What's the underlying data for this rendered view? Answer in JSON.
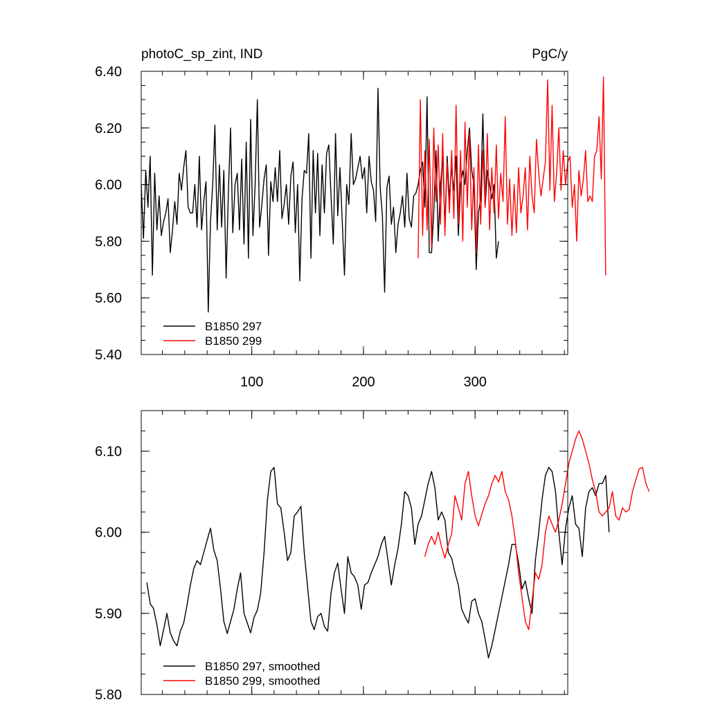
{
  "chart_data": [
    {
      "type": "line",
      "title_left": "photoC_sp_zint, IND",
      "title_right": "PgC/y",
      "xlim": [
        1,
        383
      ],
      "ylim": [
        5.4,
        6.4
      ],
      "x_ticks": [
        100,
        200,
        300
      ],
      "x_tick_labels": [
        "100",
        "200",
        "300"
      ],
      "y_ticks": [
        5.4,
        5.6,
        5.8,
        6.0,
        6.2,
        6.4
      ],
      "y_tick_labels": [
        "5.40",
        "5.60",
        "5.80",
        "6.00",
        "6.20",
        "6.40"
      ],
      "legend_position": "bottom-left",
      "series": [
        {
          "name": "B1850 297",
          "color": "#000000",
          "x_start": 1,
          "step": 2,
          "values": [
            6.0,
            5.81,
            6.05,
            5.92,
            6.1,
            5.68,
            6.04,
            5.84,
            5.96,
            5.82,
            5.87,
            5.9,
            5.95,
            5.76,
            5.84,
            5.94,
            5.86,
            6.04,
            5.98,
            6.06,
            6.12,
            5.92,
            5.9,
            5.9,
            6.0,
            5.85,
            6.1,
            5.84,
            5.94,
            6.01,
            5.55,
            5.87,
            6.0,
            6.21,
            5.84,
            6.07,
            5.85,
            6.05,
            5.67,
            5.97,
            6.2,
            5.83,
            6.0,
            6.04,
            5.84,
            6.09,
            5.79,
            6.15,
            5.74,
            6.23,
            5.82,
            6.0,
            6.3,
            5.85,
            5.93,
            6.02,
            6.07,
            5.75,
            6.01,
            5.94,
            6.06,
            5.94,
            6.12,
            5.88,
            5.93,
            6.0,
            5.86,
            6.03,
            6.08,
            5.83,
            6.0,
            5.66,
            5.95,
            6.05,
            6.04,
            6.18,
            5.74,
            6.12,
            5.9,
            6.11,
            5.82,
            6.07,
            5.9,
            6.11,
            6.14,
            5.96,
            5.79,
            6.18,
            5.89,
            6.06,
            5.87,
            5.68,
            6.0,
            5.93,
            6.18,
            6.0,
            6.02,
            6.06,
            6.1,
            6.02,
            6.06,
            5.9,
            6.1,
            6.01,
            5.98,
            5.87,
            6.34,
            5.99,
            5.89,
            5.62,
            5.99,
            6.03,
            5.86,
            5.92,
            5.76,
            5.86,
            5.9,
            5.96,
            5.85,
            6.04,
            5.88,
            5.85,
            5.96,
            5.97,
            6.0,
            6.05,
            6.08,
            5.92,
            6.31,
            5.76,
            5.76,
            5.9,
            6.12,
            5.8,
            6.0,
            6.1,
            5.85,
            6.1,
            5.95,
            6.06,
            5.98,
            6.1,
            5.82,
            6.0,
            6.05,
            6.0,
            6.12,
            6.2,
            6.05,
            6.0,
            5.7,
            5.9,
            5.95,
            6.25,
            5.92,
            6.05,
            6.0,
            5.95,
            6.0,
            5.74,
            5.8
          ]
        },
        {
          "name": "B1850 299",
          "color": "#ff0000",
          "x_start": 249,
          "step": 2,
          "values": [
            5.74,
            6.3,
            5.82,
            6.12,
            5.84,
            6.16,
            5.78,
            6.2,
            5.94,
            6.14,
            5.86,
            6.18,
            5.82,
            6.08,
            5.9,
            6.12,
            5.88,
            6.28,
            5.86,
            6.12,
            5.8,
            6.22,
            5.92,
            6.18,
            5.84,
            6.06,
            5.76,
            6.14,
            5.86,
            6.12,
            5.92,
            6.18,
            5.84,
            6.06,
            5.9,
            6.14,
            5.88,
            6.04,
            5.94,
            6.24,
            5.86,
            6.02,
            5.82,
            6.0,
            5.83,
            6.06,
            5.9,
            5.96,
            6.06,
            5.84,
            6.1,
            5.96,
            5.9,
            6.16,
            6.04,
            5.96,
            6.02,
            6.08,
            6.37,
            5.98,
            6.28,
            5.94,
            6.04,
            6.2,
            5.98,
            6.12,
            6.0,
            6.08,
            6.1,
            5.92,
            6.0,
            5.8,
            6.05,
            5.96,
            6.02,
            6.12,
            5.94,
            5.96,
            5.94,
            6.1,
            6.12,
            6.24,
            6.02,
            6.38,
            5.68
          ]
        }
      ],
      "legend": [
        "B1850 297",
        "B1850 299"
      ]
    },
    {
      "type": "line",
      "xlim": [
        1,
        383
      ],
      "ylim": [
        5.8,
        6.15
      ],
      "x_ticks": [
        100,
        200,
        300
      ],
      "x_tick_labels": [],
      "y_ticks": [
        5.8,
        5.9,
        6.0,
        6.1
      ],
      "y_tick_labels": [
        "5.80",
        "5.90",
        "6.00",
        "6.10"
      ],
      "legend_position": "bottom-left",
      "series": [
        {
          "name": "B1850 297, smoothed",
          "color": "#000000",
          "x_start": 6,
          "step": 3,
          "values": [
            5.938,
            5.912,
            5.906,
            5.886,
            5.86,
            5.88,
            5.9,
            5.876,
            5.866,
            5.86,
            5.878,
            5.888,
            5.91,
            5.935,
            5.955,
            5.965,
            5.96,
            5.975,
            5.99,
            6.005,
            5.978,
            5.965,
            5.93,
            5.89,
            5.875,
            5.89,
            5.905,
            5.93,
            5.95,
            5.9,
            5.888,
            5.876,
            5.895,
            5.904,
            5.925,
            5.975,
            6.04,
            6.075,
            6.08,
            6.035,
            6.03,
            6.0,
            5.965,
            5.975,
            6.02,
            6.025,
            6.032,
            5.975,
            5.932,
            5.89,
            5.88,
            5.896,
            5.9,
            5.884,
            5.878,
            5.925,
            5.95,
            5.962,
            5.93,
            5.9,
            5.97,
            5.95,
            5.945,
            5.935,
            5.905,
            5.935,
            5.938,
            5.95,
            5.96,
            5.97,
            5.985,
            5.995,
            5.965,
            5.935,
            5.96,
            5.98,
            6.01,
            6.05,
            6.045,
            6.03,
            5.985,
            6.01,
            6.02,
            6.04,
            6.06,
            6.075,
            6.055,
            6.015,
            6.025,
            6.015,
            5.975,
            5.968,
            5.95,
            5.935,
            5.905,
            5.896,
            5.888,
            5.915,
            5.918,
            5.9,
            5.89,
            5.868,
            5.845,
            5.86,
            5.88,
            5.9,
            5.92,
            5.94,
            5.96,
            5.985,
            5.985,
            5.962,
            5.93,
            5.94,
            5.918,
            5.9,
            5.965,
            6.0,
            6.04,
            6.07,
            6.08,
            6.075,
            6.05,
            6.0,
            5.96,
            6.005,
            6.03,
            6.045,
            6.01,
            6.005,
            5.97,
            6.03,
            6.05,
            6.055,
            6.045,
            6.06,
            6.06,
            6.07,
            6.0
          ]
        },
        {
          "name": "B1850 299, smoothed",
          "color": "#ff0000",
          "x_start": 255,
          "step": 3,
          "values": [
            5.97,
            5.985,
            5.995,
            5.985,
            6.0,
            5.982,
            5.968,
            5.985,
            5.998,
            6.045,
            6.03,
            6.015,
            6.06,
            6.075,
            6.045,
            6.02,
            6.008,
            6.022,
            6.035,
            6.045,
            6.06,
            6.07,
            6.062,
            6.075,
            6.05,
            6.04,
            6.02,
            5.99,
            5.95,
            5.92,
            5.89,
            5.88,
            5.915,
            5.95,
            5.942,
            5.96,
            6.0,
            6.02,
            6.01,
            6.0,
            6.015,
            6.035,
            6.06,
            6.085,
            6.1,
            6.115,
            6.125,
            6.115,
            6.1,
            6.085,
            6.065,
            6.05,
            6.025,
            6.02,
            6.025,
            6.03,
            6.05,
            6.02,
            6.015,
            6.03,
            6.025,
            6.028,
            6.05,
            6.065,
            6.078,
            6.08,
            6.06,
            6.05
          ]
        }
      ],
      "legend": [
        "B1850 297, smoothed",
        "B1850 299, smoothed"
      ]
    }
  ]
}
